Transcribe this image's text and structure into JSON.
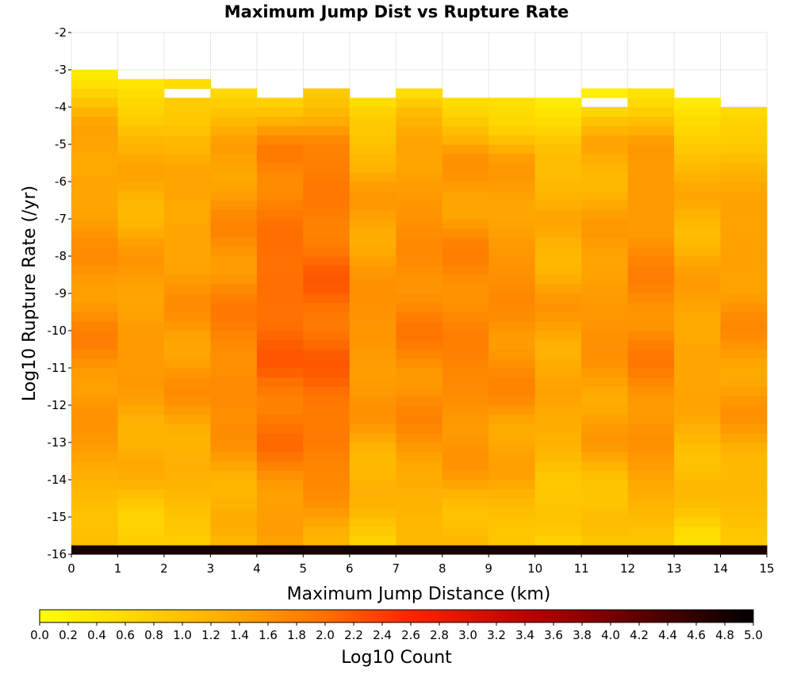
{
  "chart_data": {
    "type": "heatmap",
    "title": "Maximum Jump Dist vs Rupture Rate",
    "xlabel": "Maximum Jump Distance (km)",
    "ylabel": "Log10 Rupture Rate (/yr)",
    "xlim": [
      0,
      15
    ],
    "ylim": [
      -16,
      -2
    ],
    "x_ticks": [
      "0",
      "1",
      "2",
      "3",
      "4",
      "5",
      "6",
      "7",
      "8",
      "9",
      "10",
      "11",
      "12",
      "13",
      "14",
      "15"
    ],
    "y_ticks": [
      "-2",
      "-3",
      "-4",
      "-5",
      "-6",
      "-7",
      "-8",
      "-9",
      "-10",
      "-11",
      "-12",
      "-13",
      "-14",
      "-15",
      "-16"
    ],
    "x_bin_width": 1,
    "y_bin_width": 0.25,
    "grid": true,
    "colorbar": {
      "label": "Log10 Count",
      "range": [
        0,
        5
      ],
      "ticks": [
        "0.0",
        "0.2",
        "0.4",
        "0.6",
        "0.8",
        "1.0",
        "1.2",
        "1.4",
        "1.6",
        "1.8",
        "2.0",
        "2.2",
        "2.4",
        "2.6",
        "2.8",
        "3.0",
        "3.2",
        "3.4",
        "3.6",
        "3.8",
        "4.0",
        "4.2",
        "4.4",
        "4.6",
        "4.8",
        "5.0"
      ],
      "colors": [
        "#ffff00",
        "#ff8c00",
        "#ff2000",
        "#8b0000",
        "#000000"
      ]
    },
    "column_profiles": {
      "top_edge": [
        -3.0,
        -3.25,
        -3.25,
        -3.5,
        -3.75,
        -3.5,
        -3.75,
        -3.5,
        -3.75,
        -3.75,
        -3.75,
        -3.5,
        -3.5,
        -3.75,
        -4.0
      ],
      "empty_bins": [
        [
          2,
          -3.75
        ],
        [
          11,
          -4.0
        ]
      ],
      "base": [
        1.3,
        1.15,
        1.2,
        1.4,
        1.72,
        1.72,
        1.22,
        1.4,
        1.4,
        1.3,
        1.05,
        1.2,
        1.4,
        1.05,
        1.2
      ],
      "row_minus_16_value": 4.8
    }
  }
}
